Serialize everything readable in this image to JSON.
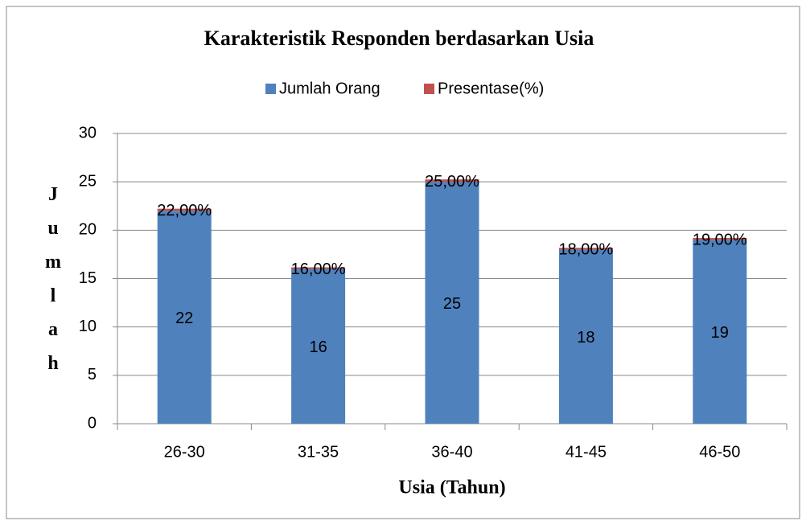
{
  "chart_data": {
    "type": "bar",
    "stacked": true,
    "title": "Karakteristik Responden berdasarkan Usia",
    "x_label": "Usia (Tahun)",
    "y_label": "Jumlah",
    "categories": [
      "26-30",
      "31-35",
      "36-40",
      "41-45",
      "46-50"
    ],
    "series": [
      {
        "name": "Jumlah Orang",
        "color": "#4f81bd",
        "values": [
          22,
          16,
          25,
          18,
          19
        ]
      },
      {
        "name": "Presentase(%)",
        "color": "#c0504d",
        "values": [
          0.22,
          0.16,
          0.25,
          0.18,
          0.19
        ],
        "value_labels": [
          "22,00%",
          "16,00%",
          "25,00%",
          "18,00%",
          "19,00%"
        ]
      }
    ],
    "ylim": [
      0,
      30
    ],
    "yticks": [
      0,
      5,
      10,
      15,
      20,
      25,
      30
    ],
    "grid": true,
    "legend": "top"
  }
}
